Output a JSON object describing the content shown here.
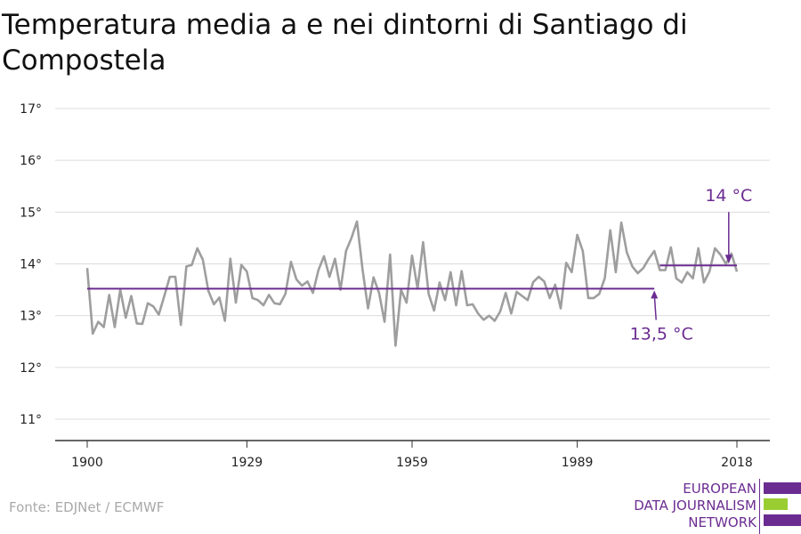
{
  "chart_data": {
    "type": "line",
    "title": "Temperatura media a e nei dintorni di Santiago di Compostela",
    "y_ticks": [
      "11°",
      "12°",
      "13°",
      "14°",
      "15°",
      "16°",
      "17°"
    ],
    "y_tick_values": [
      11,
      12,
      13,
      14,
      15,
      16,
      17
    ],
    "x_ticks": [
      "1900",
      "1929",
      "1959",
      "1989",
      "2018"
    ],
    "x_tick_values": [
      1900,
      1929,
      1959,
      1989,
      2018
    ],
    "ylim": [
      10.6,
      17.2
    ],
    "xlim": [
      1900,
      2018
    ],
    "grid": true,
    "series": [
      {
        "color": "#9e9e9e",
        "x": [
          1900,
          1901,
          1902,
          1903,
          1904,
          1905,
          1906,
          1907,
          1908,
          1909,
          1910,
          1911,
          1912,
          1913,
          1914,
          1915,
          1916,
          1917,
          1918,
          1919,
          1920,
          1921,
          1922,
          1923,
          1924,
          1925,
          1926,
          1927,
          1928,
          1929,
          1930,
          1931,
          1932,
          1933,
          1934,
          1935,
          1936,
          1937,
          1938,
          1939,
          1940,
          1941,
          1942,
          1943,
          1944,
          1945,
          1946,
          1947,
          1948,
          1949,
          1950,
          1951,
          1952,
          1953,
          1954,
          1955,
          1956,
          1957,
          1958,
          1959,
          1960,
          1961,
          1962,
          1963,
          1964,
          1965,
          1966,
          1967,
          1968,
          1969,
          1970,
          1971,
          1972,
          1973,
          1974,
          1975,
          1976,
          1977,
          1978,
          1979,
          1980,
          1981,
          1982,
          1983,
          1984,
          1985,
          1986,
          1987,
          1988,
          1989,
          1990,
          1991,
          1992,
          1993,
          1994,
          1995,
          1996,
          1997,
          1998,
          1999,
          2000,
          2001,
          2002,
          2003,
          2004,
          2005,
          2006,
          2007,
          2008,
          2009,
          2010,
          2011,
          2012,
          2013,
          2014,
          2015,
          2016,
          2017,
          2018
        ],
        "y": [
          13.92,
          12.65,
          12.88,
          12.78,
          13.4,
          12.78,
          13.5,
          12.96,
          13.38,
          12.85,
          12.84,
          13.24,
          13.18,
          13.02,
          13.38,
          13.75,
          13.75,
          12.82,
          13.95,
          13.98,
          14.3,
          14.08,
          13.48,
          13.22,
          13.35,
          12.9,
          14.1,
          13.25,
          13.98,
          13.85,
          13.34,
          13.3,
          13.2,
          13.4,
          13.24,
          13.22,
          13.42,
          14.04,
          13.7,
          13.58,
          13.66,
          13.44,
          13.88,
          14.15,
          13.75,
          14.1,
          13.5,
          14.25,
          14.5,
          14.82,
          13.9,
          13.14,
          13.74,
          13.44,
          12.88,
          14.18,
          12.42,
          13.5,
          13.25,
          14.16,
          13.52,
          14.42,
          13.42,
          13.1,
          13.64,
          13.3,
          13.84,
          13.2,
          13.86,
          13.2,
          13.22,
          13.04,
          12.92,
          13.0,
          12.9,
          13.08,
          13.44,
          13.04,
          13.46,
          13.38,
          13.3,
          13.65,
          13.75,
          13.66,
          13.34,
          13.6,
          13.14,
          14.02,
          13.84,
          14.56,
          14.25,
          13.34,
          13.34,
          13.42,
          13.72,
          14.65,
          13.84,
          14.8,
          14.22,
          13.95,
          13.82,
          13.92,
          14.1,
          14.25,
          13.88,
          13.88,
          14.32,
          13.72,
          13.64,
          13.84,
          13.72,
          14.3,
          13.64,
          13.85,
          14.3,
          14.18,
          14.0,
          14.2,
          13.85
        ]
      },
      {
        "color": "#6b2c91",
        "x": [
          1900,
          2003
        ],
        "y": [
          13.52,
          13.52
        ]
      },
      {
        "color": "#6b2c91",
        "x": [
          2004,
          2018
        ],
        "y": [
          13.97,
          13.97
        ]
      }
    ],
    "annotations": [
      {
        "text": "13,5 °C",
        "x": 2003,
        "y": 13.52,
        "color": "#6b2c91"
      },
      {
        "text": "14 °C",
        "x": 2017,
        "y": 13.97,
        "color": "#6b2c91"
      }
    ]
  },
  "source": "Fonte: EDJNet / ECMWF",
  "logo": {
    "lines": [
      "EUROPEAN",
      "DATA JOURNALISM",
      "NETWORK"
    ],
    "colors": [
      "#6b2c91",
      "#9acd32",
      "#6b2c91"
    ]
  }
}
